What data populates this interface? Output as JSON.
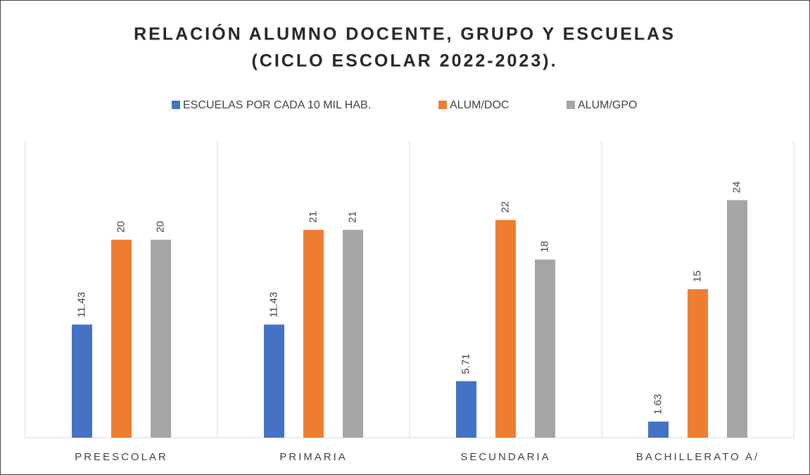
{
  "chart_data": {
    "type": "bar",
    "title": [
      "RELACIÓN ALUMNO DOCENTE, GRUPO Y ESCUELAS",
      "(CICLO ESCOLAR 2022-2023)."
    ],
    "categories": [
      "PREESCOLAR",
      "PRIMARIA",
      "SECUNDARIA",
      "BACHILLERATO A/"
    ],
    "series": [
      {
        "name": "ESCUELAS POR CADA 10 MIL HAB.",
        "color": "#4472c4",
        "values": [
          11.43,
          11.43,
          5.71,
          1.63
        ]
      },
      {
        "name": "ALUM/DOC",
        "color": "#ed7d31",
        "values": [
          20,
          21,
          22,
          15
        ]
      },
      {
        "name": "ALUM/GPO",
        "color": "#a5a5a5",
        "values": [
          20,
          21,
          18,
          24
        ]
      }
    ],
    "ylim": [
      0,
      30
    ],
    "legend": "top",
    "data_labels": true
  }
}
